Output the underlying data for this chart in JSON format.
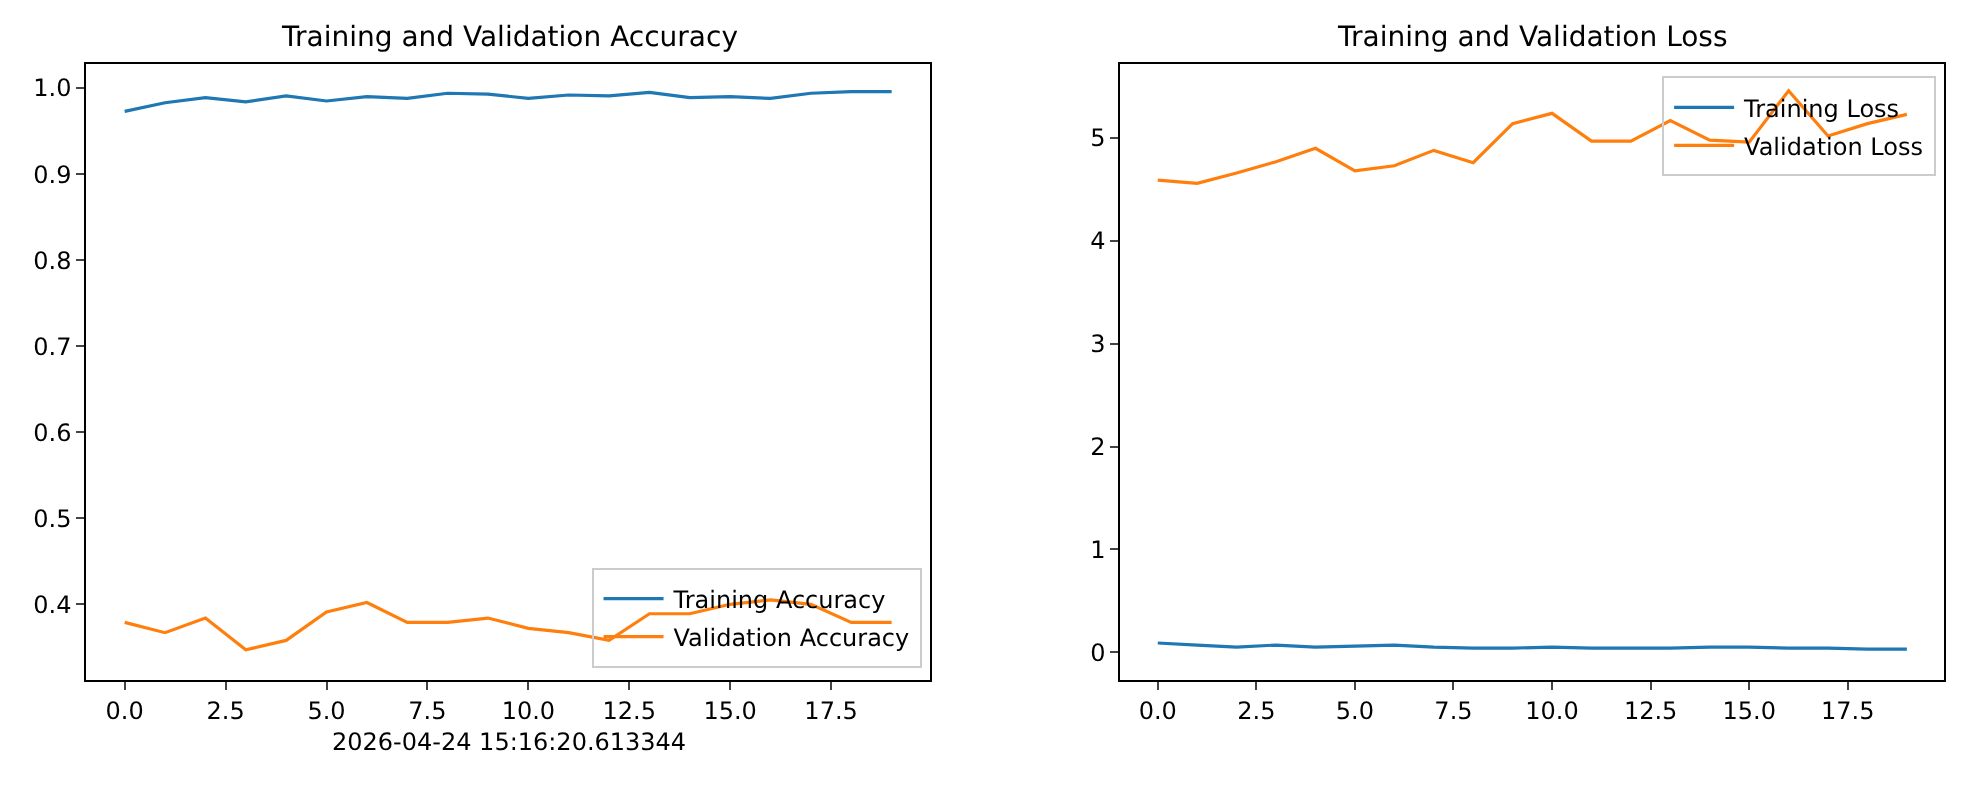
{
  "chart_data": [
    {
      "type": "line",
      "title": "Training and Validation Accuracy",
      "x": [
        0,
        1,
        2,
        3,
        4,
        5,
        6,
        7,
        8,
        9,
        10,
        11,
        12,
        13,
        14,
        15,
        16,
        17,
        18,
        19
      ],
      "series": [
        {
          "name": "Training Accuracy",
          "color": "#1f77b4",
          "values": [
            0.973,
            0.983,
            0.989,
            0.984,
            0.991,
            0.985,
            0.99,
            0.988,
            0.994,
            0.993,
            0.988,
            0.992,
            0.991,
            0.995,
            0.989,
            0.99,
            0.988,
            0.994,
            0.996,
            0.996
          ]
        },
        {
          "name": "Validation Accuracy",
          "color": "#ff7f0e",
          "values": [
            0.379,
            0.367,
            0.384,
            0.347,
            0.358,
            0.391,
            0.402,
            0.379,
            0.379,
            0.384,
            0.372,
            0.367,
            0.358,
            0.389,
            0.389,
            0.4,
            0.405,
            0.4,
            0.379,
            0.379
          ]
        }
      ],
      "xlim": [
        -0.95,
        19.95
      ],
      "xticks": [
        {
          "value": 0,
          "label": "0.0"
        },
        {
          "value": 2.5,
          "label": "2.5"
        },
        {
          "value": 5,
          "label": "5.0"
        },
        {
          "value": 7.5,
          "label": "7.5"
        },
        {
          "value": 10,
          "label": "10.0"
        },
        {
          "value": 12.5,
          "label": "12.5"
        },
        {
          "value": 15,
          "label": "15.0"
        },
        {
          "value": 17.5,
          "label": "17.5"
        }
      ],
      "ylim": [
        0.312,
        1.028
      ],
      "yticks": [
        0.4,
        0.5,
        0.6,
        0.7,
        0.8,
        0.9,
        {
          "value": 1,
          "label": "1.0"
        }
      ],
      "legend": "bottom right",
      "line_style": "solid",
      "marker": "none",
      "annotations": [
        "2026-04-24 15:16:20.613344"
      ]
    },
    {
      "type": "line",
      "title": "Training and Validation Loss",
      "x": [
        0,
        1,
        2,
        3,
        4,
        5,
        6,
        7,
        8,
        9,
        10,
        11,
        12,
        13,
        14,
        15,
        16,
        17,
        18,
        19
      ],
      "series": [
        {
          "name": "Training Loss",
          "color": "#1f77b4",
          "values": [
            0.09,
            0.07,
            0.05,
            0.07,
            0.05,
            0.06,
            0.07,
            0.05,
            0.04,
            0.04,
            0.05,
            0.04,
            0.04,
            0.04,
            0.05,
            0.05,
            0.04,
            0.04,
            0.03,
            0.03
          ]
        },
        {
          "name": "Validation Loss",
          "color": "#ff7f0e",
          "values": [
            4.59,
            4.56,
            4.66,
            4.77,
            4.9,
            4.68,
            4.73,
            4.88,
            4.76,
            5.14,
            5.24,
            4.97,
            4.97,
            5.17,
            4.98,
            4.96,
            5.46,
            5.02,
            5.14,
            5.23
          ]
        }
      ],
      "xlim": [
        -0.95,
        19.95
      ],
      "xticks": [
        {
          "value": 0,
          "label": "0.0"
        },
        {
          "value": 2.5,
          "label": "2.5"
        },
        {
          "value": 5,
          "label": "5.0"
        },
        {
          "value": 7.5,
          "label": "7.5"
        },
        {
          "value": 10,
          "label": "10.0"
        },
        {
          "value": 12.5,
          "label": "12.5"
        },
        {
          "value": 15,
          "label": "15.0"
        },
        {
          "value": 17.5,
          "label": "17.5"
        }
      ],
      "ylim": [
        -0.27,
        5.72
      ],
      "yticks": [
        0,
        1,
        2,
        3,
        4,
        5
      ],
      "legend": "top right",
      "line_style": "solid",
      "marker": "none"
    }
  ]
}
